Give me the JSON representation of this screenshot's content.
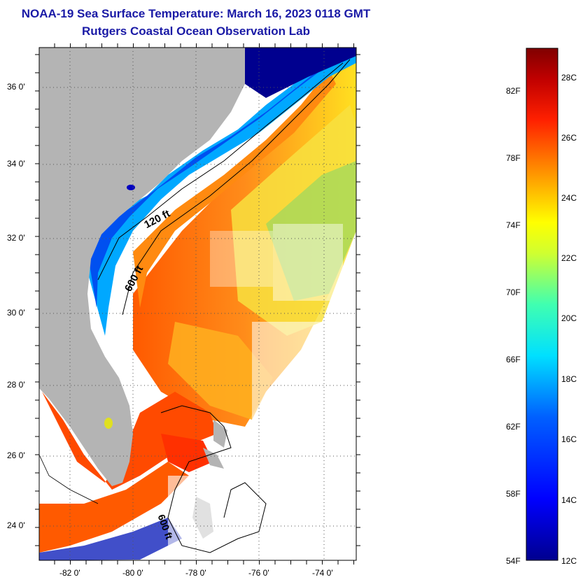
{
  "title": {
    "line1": "NOAA-19 Sea Surface Temperature:  March 16, 2023 0118 GMT",
    "line2": "Rutgers Coastal Ocean Observation Lab"
  },
  "map": {
    "lat_ticks": [
      "36 0'",
      "34 0'",
      "32 0'",
      "30 0'",
      "28 0'",
      "26 0'",
      "24 0'"
    ],
    "lon_ticks": [
      "-82 0'",
      "-80 0'",
      "-78 0'",
      "-76 0'",
      "-74 0'"
    ],
    "contour_labels": [
      "120 ft",
      "600 ft",
      "600 ft"
    ],
    "colors": {
      "land": "#b4b4b4",
      "no_data": "#ffffff",
      "cold": "#00008f",
      "warm": "#800000"
    }
  },
  "colorbar": {
    "fahrenheit": [
      "82F",
      "78F",
      "74F",
      "70F",
      "66F",
      "62F",
      "58F",
      "54F"
    ],
    "celsius": [
      "28C",
      "26C",
      "24C",
      "22C",
      "20C",
      "18C",
      "16C",
      "14C",
      "12C"
    ],
    "range_c": [
      12,
      29
    ]
  }
}
